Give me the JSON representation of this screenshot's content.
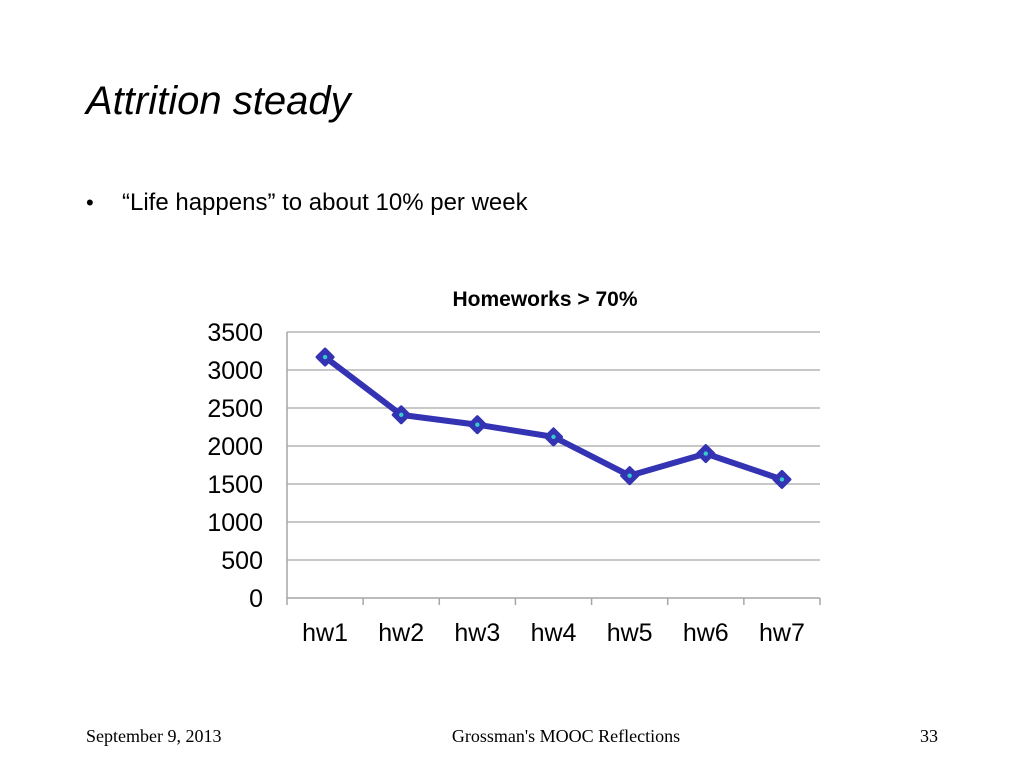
{
  "slide": {
    "title": "Attrition steady",
    "bullet_marker": "•",
    "bullet_text": "“Life happens” to about 10% per week"
  },
  "footer": {
    "date": "September 9, 2013",
    "center": "Grossman's MOOC Reflections",
    "page": "33"
  },
  "colors": {
    "series_line": "#3333b3",
    "marker_center": "#33cccc",
    "gridline": "#a6a6a6",
    "axis": "#a6a6a6"
  },
  "chart_data": {
    "type": "line",
    "title": "Homeworks > 70%",
    "xlabel": "",
    "ylabel": "",
    "categories": [
      "hw1",
      "hw2",
      "hw3",
      "hw4",
      "hw5",
      "hw6",
      "hw7"
    ],
    "series": [
      {
        "values": [
          3170,
          2410,
          2280,
          2120,
          1610,
          1900,
          1560
        ]
      }
    ],
    "ylim": [
      0,
      3500
    ],
    "yticks": [
      "0",
      "500",
      "1000",
      "1500",
      "2000",
      "2500",
      "3000",
      "3500"
    ],
    "grid": true,
    "legend": "none",
    "marker": "diamond"
  }
}
